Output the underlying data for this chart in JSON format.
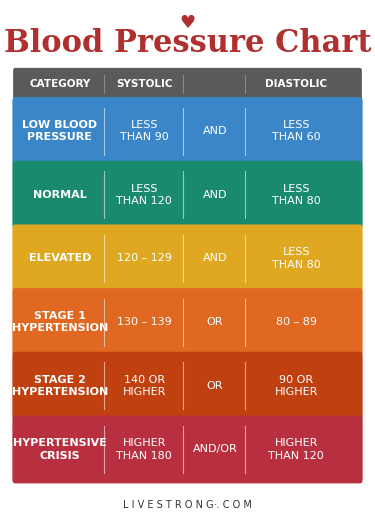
{
  "title": "Blood Pressure Chart",
  "title_color": "#b03030",
  "title_fontsize": 22,
  "background_color": "#ffffff",
  "header_bg": "#5a5a5a",
  "header_text_color": "#ffffff",
  "header_labels": [
    "CATEGORY",
    "SYSTOLIC",
    "",
    "DIASTOLIC"
  ],
  "rows": [
    {
      "color": "#3a86c8",
      "cells": [
        "LOW BLOOD\nPRESSURE",
        "LESS\nTHAN 90",
        "AND",
        "LESS\nTHAN 60"
      ]
    },
    {
      "color": "#1a8a6e",
      "cells": [
        "NORMAL",
        "LESS\nTHAN 120",
        "AND",
        "LESS\nTHAN 80"
      ]
    },
    {
      "color": "#e0a820",
      "cells": [
        "ELEVATED",
        "120 – 129",
        "AND",
        "LESS\nTHAN 80"
      ]
    },
    {
      "color": "#e06820",
      "cells": [
        "STAGE 1\nHYPERTENSION",
        "130 – 139",
        "OR",
        "80 – 89"
      ]
    },
    {
      "color": "#c04010",
      "cells": [
        "STAGE 2\nHYPERTENSION",
        "140 OR\nHIGHER",
        "OR",
        "90 OR\nHIGHER"
      ]
    },
    {
      "color": "#b83040",
      "cells": [
        "HYPERTENSIVE\nCRISIS",
        "HIGHER\nTHAN 180",
        "AND/OR",
        "HIGHER\nTHAN 120"
      ]
    }
  ],
  "footer_text": "L I V E S T R O N G·. C O M",
  "footer_color": "#333333",
  "text_color": "#ffffff",
  "cell_fontsize": 8,
  "header_fontsize": 7.5
}
